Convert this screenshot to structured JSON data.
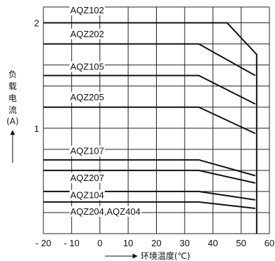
{
  "chart_data": {
    "type": "line",
    "ylabel": [
      "负",
      "载",
      "电",
      "流",
      "(A)"
    ],
    "xlabel": "环境温度(℃)",
    "xlim": [
      -20,
      60
    ],
    "ylim": [
      0,
      2.15
    ],
    "x_ticks": [
      -20,
      -10,
      0,
      10,
      20,
      30,
      40,
      50,
      60
    ],
    "x_tick_labels": [
      "- 20",
      "- 10",
      "0",
      "10",
      "20",
      "30",
      "40",
      "50",
      "60"
    ],
    "y_ticks": [
      1,
      2
    ],
    "y_tick_labels": [
      "1",
      "2"
    ],
    "grid": true,
    "series": [
      {
        "name": "AQZ102",
        "points": [
          [
            -20,
            2.0
          ],
          [
            45,
            2.0
          ],
          [
            55.5,
            1.7
          ],
          [
            55.5,
            0
          ]
        ]
      },
      {
        "name": "AQZ202",
        "points": [
          [
            -20,
            1.8
          ],
          [
            35,
            1.8
          ],
          [
            55,
            1.5
          ]
        ]
      },
      {
        "name": "AQZ105",
        "points": [
          [
            -20,
            1.5
          ],
          [
            35,
            1.5
          ],
          [
            55,
            1.23
          ]
        ]
      },
      {
        "name": "AQZ205",
        "points": [
          [
            -20,
            1.2
          ],
          [
            35,
            1.2
          ],
          [
            55,
            0.95
          ]
        ]
      },
      {
        "name": "AQZ107",
        "points": [
          [
            -20,
            0.7
          ],
          [
            35,
            0.7
          ],
          [
            55,
            0.55
          ]
        ]
      },
      {
        "name": "AQZ207",
        "points": [
          [
            -20,
            0.6
          ],
          [
            35,
            0.6
          ],
          [
            55,
            0.48
          ]
        ]
      },
      {
        "name": "AQZ104",
        "points": [
          [
            -20,
            0.4
          ],
          [
            35,
            0.4
          ],
          [
            55,
            0.32
          ]
        ]
      },
      {
        "name": "AQZ204,AQZ404",
        "points": [
          [
            -20,
            0.3
          ],
          [
            35,
            0.3
          ],
          [
            55,
            0.24
          ]
        ]
      }
    ]
  }
}
